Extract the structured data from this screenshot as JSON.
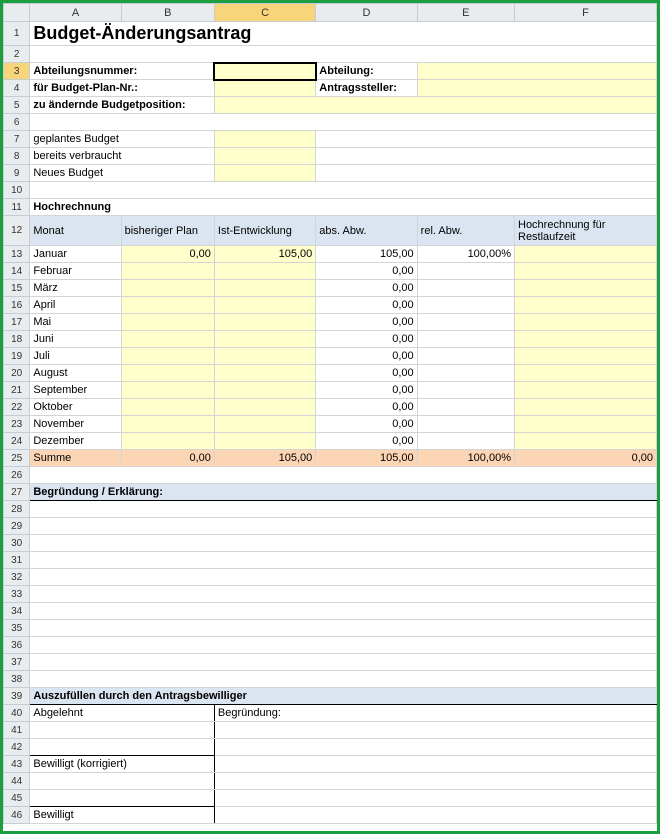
{
  "columns": [
    "A",
    "B",
    "C",
    "D",
    "E",
    "F"
  ],
  "active_cell": {
    "col": "C",
    "row": 3
  },
  "title": "Budget-Änderungsantrag",
  "header": {
    "abteilungsnummer_label": "Abteilungsnummer:",
    "abteilung_label": "Abteilung:",
    "budgetplan_label": "für Budget-Plan-Nr.:",
    "antragssteller_label": "Antragssteller:",
    "budgetposition_label": "zu ändernde Budgetposition:"
  },
  "budget_rows": {
    "geplant": "geplantes Budget",
    "verbraucht": "bereits verbraucht",
    "neues": "Neues Budget"
  },
  "hochrechnung": {
    "title": "Hochrechnung",
    "cols": {
      "monat": "Monat",
      "bisheriger": "bisheriger Plan",
      "ist": "Ist-Entwicklung",
      "absabw": "abs. Abw.",
      "relabw": "rel. Abw.",
      "rest": "Hochrechnung für Restlaufzeit"
    },
    "rows": [
      {
        "m": "Januar",
        "b": "0,00",
        "i": "105,00",
        "a": "105,00",
        "r": "100,00%",
        "h": ""
      },
      {
        "m": "Februar",
        "b": "",
        "i": "",
        "a": "0,00",
        "r": "",
        "h": ""
      },
      {
        "m": "März",
        "b": "",
        "i": "",
        "a": "0,00",
        "r": "",
        "h": ""
      },
      {
        "m": "April",
        "b": "",
        "i": "",
        "a": "0,00",
        "r": "",
        "h": ""
      },
      {
        "m": "Mai",
        "b": "",
        "i": "",
        "a": "0,00",
        "r": "",
        "h": ""
      },
      {
        "m": "Juni",
        "b": "",
        "i": "",
        "a": "0,00",
        "r": "",
        "h": ""
      },
      {
        "m": "Juli",
        "b": "",
        "i": "",
        "a": "0,00",
        "r": "",
        "h": ""
      },
      {
        "m": "August",
        "b": "",
        "i": "",
        "a": "0,00",
        "r": "",
        "h": ""
      },
      {
        "m": "September",
        "b": "",
        "i": "",
        "a": "0,00",
        "r": "",
        "h": ""
      },
      {
        "m": "Oktober",
        "b": "",
        "i": "",
        "a": "0,00",
        "r": "",
        "h": ""
      },
      {
        "m": "November",
        "b": "",
        "i": "",
        "a": "0,00",
        "r": "",
        "h": ""
      },
      {
        "m": "Dezember",
        "b": "",
        "i": "",
        "a": "0,00",
        "r": "",
        "h": ""
      }
    ],
    "sum": {
      "label": "Summe",
      "b": "0,00",
      "i": "105,00",
      "a": "105,00",
      "r": "100,00%",
      "h": "0,00"
    }
  },
  "begruendung": {
    "title": "Begründung / Erklärung:"
  },
  "bewilliger": {
    "title": "Auszufüllen durch den Antragsbewilliger",
    "abgelehnt": "Abgelehnt",
    "begruendung": "Begründung:",
    "bewilligt_korr": "Bewilligt (korrigiert)",
    "bewilligt": "Bewilligt"
  },
  "colors": {
    "frame_border": "#1a9e3e",
    "header_bg": "#e8ecef",
    "yellow": "#ffffcc",
    "blue_hdr": "#dbe5f1",
    "orange": "#fcd5b4",
    "select_hdr": "#f8d57a",
    "grid": "#d4d4d4"
  }
}
